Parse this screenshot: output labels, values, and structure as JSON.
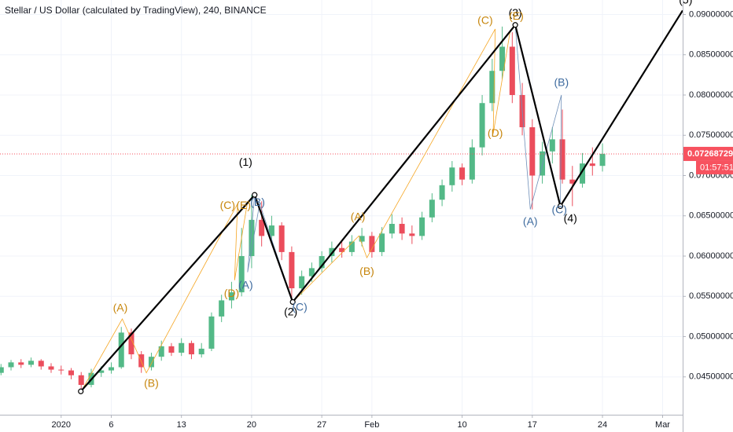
{
  "chart_data": {
    "type": "candlestick",
    "title": "Stellar / US Dollar (calculated by TradingView), 240, BINANCE",
    "x": [
      -6,
      -5,
      -4,
      -3,
      -2,
      -1,
      0,
      1,
      2,
      3,
      4,
      5,
      6,
      7,
      8,
      9,
      10,
      11,
      12,
      13,
      14,
      15,
      16,
      17,
      18,
      19,
      20,
      21,
      22,
      23,
      24,
      25,
      26,
      27,
      28,
      29,
      30,
      31,
      32,
      33,
      34,
      35,
      36,
      37,
      38,
      39,
      40,
      41,
      42,
      43,
      44,
      45,
      46,
      47,
      48,
      49,
      50,
      51,
      52,
      53,
      54
    ],
    "open": [
      0.0455,
      0.0462,
      0.0468,
      0.0465,
      0.047,
      0.0463,
      0.0459,
      0.0458,
      0.0452,
      0.044,
      0.0455,
      0.0458,
      0.0462,
      0.0505,
      0.0478,
      0.0462,
      0.0475,
      0.0488,
      0.048,
      0.0492,
      0.0478,
      0.0485,
      0.0525,
      0.0545,
      0.0555,
      0.06,
      0.0645,
      0.0625,
      0.0638,
      0.0605,
      0.056,
      0.0575,
      0.0585,
      0.06,
      0.061,
      0.0605,
      0.0618,
      0.0625,
      0.0605,
      0.0628,
      0.064,
      0.0628,
      0.0625,
      0.0648,
      0.067,
      0.0688,
      0.071,
      0.0695,
      0.0735,
      0.079,
      0.083,
      0.086,
      0.08,
      0.076,
      0.07,
      0.073,
      0.0745,
      0.0695,
      0.069,
      0.0715,
      0.0712
    ],
    "high": [
      0.0466,
      0.0471,
      0.0472,
      0.0474,
      0.0472,
      0.0467,
      0.0464,
      0.0461,
      0.0456,
      0.046,
      0.0463,
      0.0468,
      0.0512,
      0.051,
      0.0482,
      0.048,
      0.0495,
      0.0492,
      0.0498,
      0.0495,
      0.0492,
      0.053,
      0.0552,
      0.0568,
      0.0635,
      0.0676,
      0.0668,
      0.065,
      0.0642,
      0.0612,
      0.0582,
      0.0592,
      0.0606,
      0.0618,
      0.062,
      0.0626,
      0.0635,
      0.063,
      0.0636,
      0.0652,
      0.0648,
      0.0638,
      0.0655,
      0.0678,
      0.0695,
      0.0718,
      0.0715,
      0.0745,
      0.08,
      0.0845,
      0.0885,
      0.0878,
      0.0815,
      0.077,
      0.0742,
      0.076,
      0.0782,
      0.0712,
      0.0728,
      0.0735,
      0.074
    ],
    "low": [
      0.0452,
      0.0458,
      0.0461,
      0.0462,
      0.0459,
      0.0455,
      0.0453,
      0.0447,
      0.0432,
      0.0437,
      0.045,
      0.0454,
      0.046,
      0.0472,
      0.0455,
      0.0458,
      0.047,
      0.0476,
      0.0476,
      0.0472,
      0.0474,
      0.0482,
      0.0518,
      0.0535,
      0.055,
      0.0585,
      0.0612,
      0.0615,
      0.0595,
      0.0543,
      0.0552,
      0.0568,
      0.058,
      0.0592,
      0.0598,
      0.06,
      0.0612,
      0.0598,
      0.06,
      0.0622,
      0.062,
      0.0615,
      0.062,
      0.0642,
      0.0662,
      0.068,
      0.0688,
      0.069,
      0.0725,
      0.078,
      0.082,
      0.079,
      0.075,
      0.0658,
      0.069,
      0.0715,
      0.069,
      0.0662,
      0.0685,
      0.07,
      0.0705
    ],
    "close": [
      0.0462,
      0.0468,
      0.0465,
      0.047,
      0.0463,
      0.0459,
      0.0458,
      0.0452,
      0.044,
      0.0455,
      0.0458,
      0.0462,
      0.0505,
      0.0478,
      0.0462,
      0.0475,
      0.0488,
      0.048,
      0.0492,
      0.0478,
      0.0485,
      0.0525,
      0.0545,
      0.0555,
      0.06,
      0.0645,
      0.0625,
      0.0638,
      0.0605,
      0.056,
      0.0575,
      0.0585,
      0.06,
      0.061,
      0.0605,
      0.0618,
      0.0625,
      0.0605,
      0.0628,
      0.064,
      0.0628,
      0.0625,
      0.0648,
      0.067,
      0.0688,
      0.071,
      0.0695,
      0.0735,
      0.079,
      0.083,
      0.086,
      0.08,
      0.076,
      0.07,
      0.073,
      0.0745,
      0.0695,
      0.069,
      0.0715,
      0.0712,
      0.0727
    ],
    "up_color": "#53b987",
    "down_color": "#eb4d5c",
    "xlim": [
      -6.1,
      62
    ],
    "xticks": [
      {
        "value": 0,
        "label": "2020"
      },
      {
        "value": 5,
        "label": "6"
      },
      {
        "value": 12,
        "label": "13"
      },
      {
        "value": 19,
        "label": "20"
      },
      {
        "value": 26,
        "label": "27"
      },
      {
        "value": 31,
        "label": "Feb"
      },
      {
        "value": 40,
        "label": "10"
      },
      {
        "value": 47,
        "label": "17"
      },
      {
        "value": 54,
        "label": "24"
      },
      {
        "value": 60,
        "label": "Mar"
      }
    ],
    "ylim": [
      0.0403,
      0.0918
    ],
    "yticks": [
      {
        "value": 0.045,
        "label": "0.04500000"
      },
      {
        "value": 0.05,
        "label": "0.05000000"
      },
      {
        "value": 0.055,
        "label": "0.05500000"
      },
      {
        "value": 0.06,
        "label": "0.06000000"
      },
      {
        "value": 0.065,
        "label": "0.06500000"
      },
      {
        "value": 0.07,
        "label": "0.07000000"
      },
      {
        "value": 0.075,
        "label": "0.07500000"
      },
      {
        "value": 0.08,
        "label": "0.08000000"
      },
      {
        "value": 0.085,
        "label": "0.08500000"
      },
      {
        "value": 0.09,
        "label": "0.09000000"
      }
    ],
    "grid": true,
    "last_price": 0.07268729,
    "last_price_color": "#f7525f",
    "countdown": "01:57:51",
    "wave_line": {
      "color": "#000000",
      "x": [
        1.96,
        19.3,
        23.1,
        45.3,
        49.8,
        62
      ],
      "y": [
        0.0432,
        0.0676,
        0.0543,
        0.0887,
        0.0662,
        0.0905
      ]
    },
    "overlays": [
      {
        "color": "#f5a623",
        "x": [
          2,
          6.1,
          8.5,
          17.6,
          17.3,
          18.6
        ],
        "y": [
          0.0432,
          0.0522,
          0.0455,
          0.0665,
          0.057,
          0.0668
        ]
      },
      {
        "color": "#f5a623",
        "x": [
          23.1,
          29.7,
          30.5,
          43.3,
          43.1,
          44.8
        ],
        "y": [
          0.0543,
          0.0625,
          0.0598,
          0.0882,
          0.0752,
          0.088
        ]
      },
      {
        "color": "#6f8fb8",
        "x": [
          19.3,
          18.6,
          19.8,
          23.1
        ],
        "y": [
          0.0676,
          0.058,
          0.0665,
          0.0543
        ]
      },
      {
        "color": "#6f8fb8",
        "x": [
          45.3,
          46.8,
          49.9,
          49.8
        ],
        "y": [
          0.0887,
          0.0658,
          0.08,
          0.0662
        ]
      }
    ],
    "annotations": [
      {
        "text": "(1)",
        "color": "#000000",
        "x": 18.4,
        "y": 0.0716
      },
      {
        "text": "(2)",
        "color": "#000000",
        "x": 22.9,
        "y": 0.053
      },
      {
        "text": "(3)",
        "color": "#000000",
        "x": 45.3,
        "y": 0.0901
      },
      {
        "text": "(4)",
        "color": "#000000",
        "x": 50.8,
        "y": 0.0646
      },
      {
        "text": "(5)",
        "color": "#000000",
        "x": 62.3,
        "y": 0.0917
      },
      {
        "text": "(A)",
        "color": "#c7860c",
        "x": 5.9,
        "y": 0.0535
      },
      {
        "text": "(B)",
        "color": "#c7860c",
        "x": 9.0,
        "y": 0.0441
      },
      {
        "text": "(C)",
        "color": "#c7860c",
        "x": 16.6,
        "y": 0.0662
      },
      {
        "text": "(D)",
        "color": "#c7860c",
        "x": 17.0,
        "y": 0.0553
      },
      {
        "text": "(E)",
        "color": "#c7860c",
        "x": 18.2,
        "y": 0.0662
      },
      {
        "text": "(A)",
        "color": "#c7860c",
        "x": 29.6,
        "y": 0.0648
      },
      {
        "text": "(B)",
        "color": "#c7860c",
        "x": 30.5,
        "y": 0.058
      },
      {
        "text": "(C)",
        "color": "#c7860c",
        "x": 42.3,
        "y": 0.0892
      },
      {
        "text": "(D)",
        "color": "#c7860c",
        "x": 43.3,
        "y": 0.0752
      },
      {
        "text": "(E)",
        "color": "#c7860c",
        "x": 45.4,
        "y": 0.0897
      },
      {
        "text": "(B)",
        "color": "#3d6a9e",
        "x": 19.6,
        "y": 0.0666
      },
      {
        "text": "(A)",
        "color": "#3d6a9e",
        "x": 18.4,
        "y": 0.0563
      },
      {
        "text": "(C)",
        "color": "#3d6a9e",
        "x": 23.8,
        "y": 0.0536
      },
      {
        "text": "(A)",
        "color": "#3d6a9e",
        "x": 46.8,
        "y": 0.0642
      },
      {
        "text": "(B)",
        "color": "#3d6a9e",
        "x": 49.9,
        "y": 0.0815
      },
      {
        "text": "(C)",
        "color": "#3d6a9e",
        "x": 49.7,
        "y": 0.0657
      }
    ]
  }
}
